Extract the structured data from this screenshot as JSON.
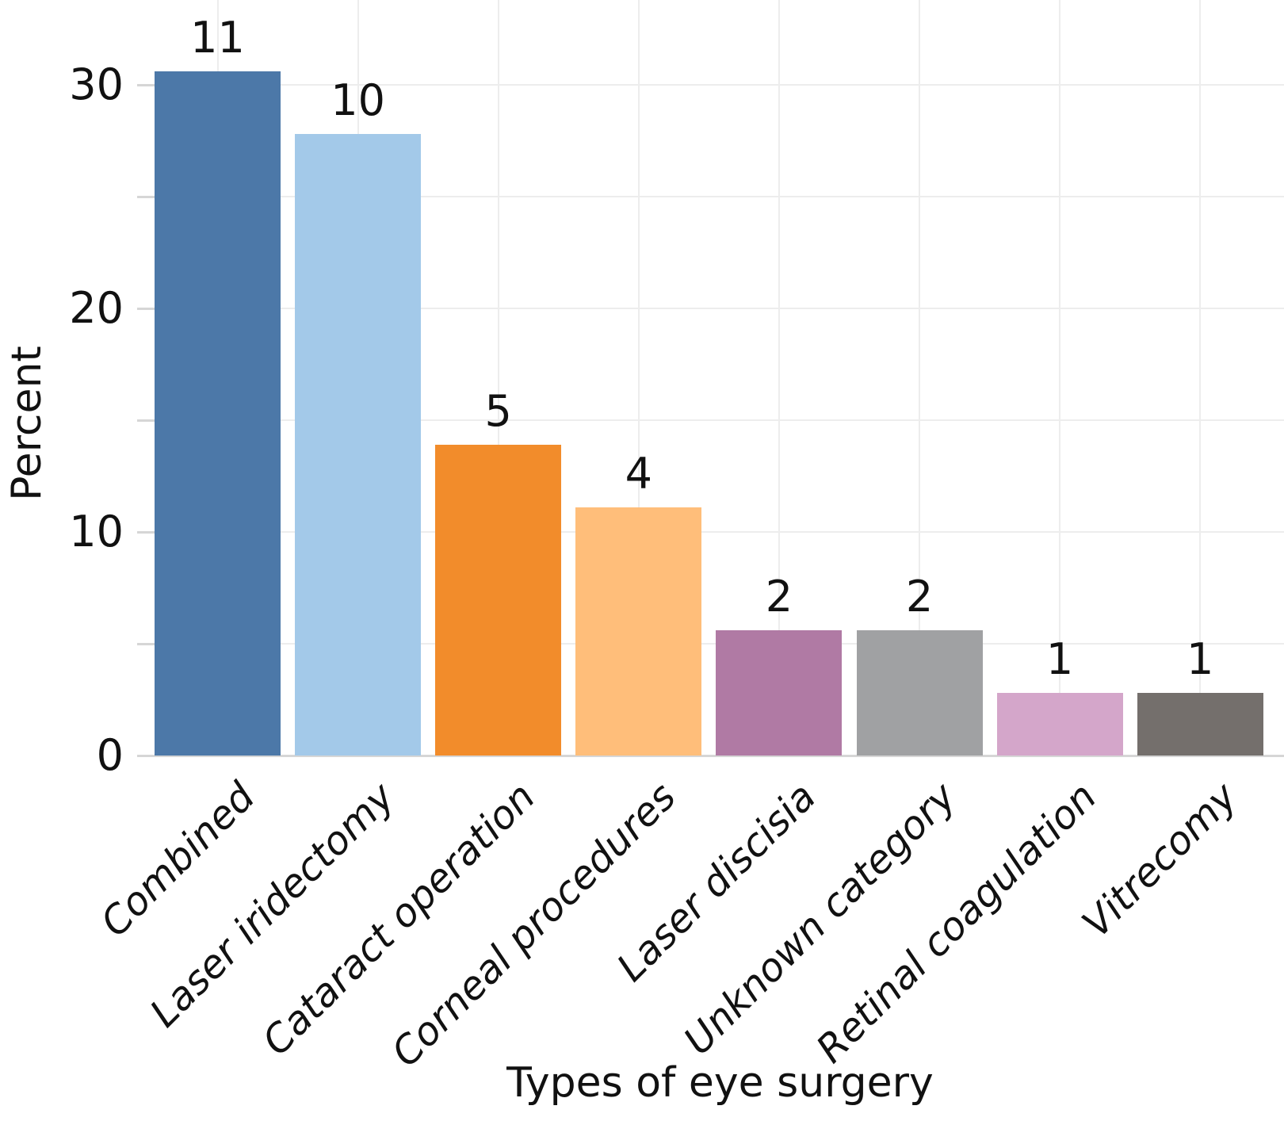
{
  "chart_data": {
    "type": "bar",
    "title": "",
    "xlabel": "Types of eye surgery",
    "ylabel": "Percent",
    "categories": [
      "Combined",
      "Laser iridectomy",
      "Cataract operation",
      "Corneal procedures",
      "Laser discisia",
      "Unknown category",
      "Retinal coagulation",
      "Vitrecomy"
    ],
    "counts": [
      11,
      10,
      5,
      4,
      2,
      2,
      1,
      1
    ],
    "values_percent": [
      30.6,
      27.8,
      13.9,
      11.1,
      5.6,
      5.6,
      2.8,
      2.8
    ],
    "bar_value_labels": [
      "11",
      "10",
      "5",
      "4",
      "2",
      "2",
      "1",
      "1"
    ],
    "bar_colors": [
      "#4C78A8",
      "#A3C9E9",
      "#F28C2B",
      "#FFBE7A",
      "#B07AA4",
      "#A0A1A3",
      "#D4A6CA",
      "#746F6C"
    ],
    "y_major_ticks": [
      0,
      10,
      20,
      30
    ],
    "y_minor_gridlines": [
      5,
      15,
      25
    ],
    "ylim": [
      0,
      33.8
    ],
    "grid": "on",
    "gridline_color": "#ededed",
    "axis_color": "#d6d6d6",
    "legend": "none"
  }
}
